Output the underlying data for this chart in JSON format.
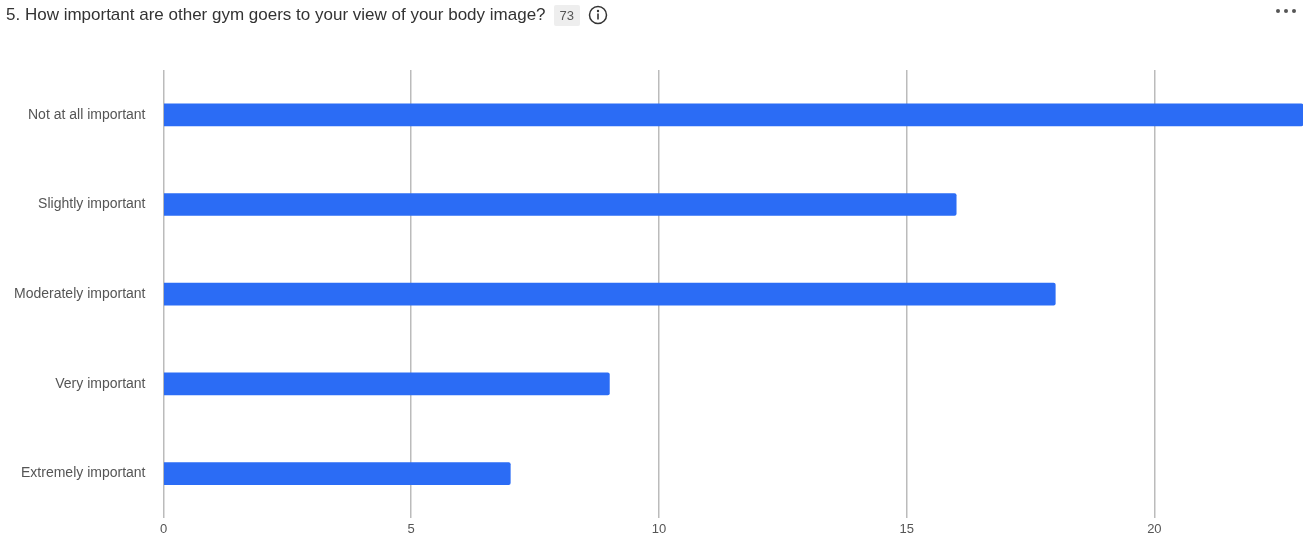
{
  "chart_data": {
    "type": "bar",
    "orientation": "horizontal",
    "title": "5. How important are other gym goers to your view of your body image?",
    "annotations": [
      "73"
    ],
    "categories": [
      "Not at all important",
      "Slightly important",
      "Moderately important",
      "Very important",
      "Extremely important"
    ],
    "values": [
      23,
      16,
      18,
      9,
      7
    ],
    "color": "#2b6cf5",
    "xlim": [
      0,
      23
    ],
    "xticks": [
      0,
      5,
      10,
      15,
      20
    ],
    "grid": "x",
    "legend": false
  }
}
